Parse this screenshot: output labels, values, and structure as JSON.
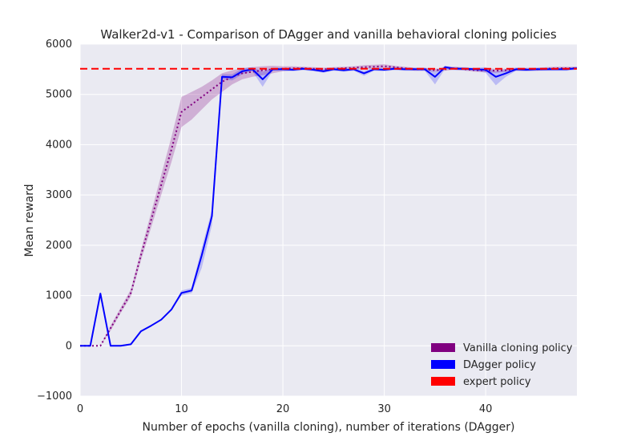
{
  "chart_data": {
    "type": "line",
    "title": "Walker2d-v1 - Comparison of DAgger and vanilla behavioral cloning policies",
    "xlabel": "Number of epochs (vanilla cloning), number of iterations (DAgger)",
    "ylabel": "Mean reward",
    "xlim": [
      0,
      49
    ],
    "ylim": [
      -1000,
      6000
    ],
    "xticks": [
      0,
      10,
      20,
      30,
      40
    ],
    "yticks": [
      -1000,
      0,
      1000,
      2000,
      3000,
      4000,
      5000,
      6000
    ],
    "ytick_labels": [
      "−1000",
      "0",
      "1000",
      "2000",
      "3000",
      "4000",
      "5000",
      "6000"
    ],
    "grid": true,
    "legend_position": "lower-right",
    "colors": {
      "background": "#eaeaf2",
      "grid": "#ffffff",
      "vanilla": "#800080",
      "dagger": "#0000ff",
      "expert": "#ff0000"
    },
    "series": [
      {
        "name": "Vanilla cloning policy",
        "style": "dotted",
        "color": "#800080",
        "x": [
          0,
          1,
          2,
          3,
          4,
          5,
          6,
          7,
          8,
          9,
          10,
          11,
          12,
          13,
          14,
          15,
          16,
          17,
          18,
          19,
          20,
          21,
          22,
          23,
          24,
          25,
          26,
          27,
          28,
          29,
          30,
          31,
          32,
          33,
          34,
          35,
          36,
          37,
          38,
          39,
          40,
          41,
          42,
          43,
          44,
          45,
          46,
          47,
          48,
          49
        ],
        "y": [
          0,
          0,
          0,
          350,
          700,
          1050,
          1800,
          2500,
          3200,
          3900,
          4650,
          4800,
          4950,
          5100,
          5250,
          5350,
          5420,
          5450,
          5480,
          5500,
          5510,
          5520,
          5520,
          5510,
          5500,
          5510,
          5520,
          5530,
          5540,
          5550,
          5560,
          5540,
          5520,
          5500,
          5500,
          5480,
          5500,
          5520,
          5500,
          5480,
          5480,
          5470,
          5480,
          5500,
          5500,
          5500,
          5510,
          5520,
          5520,
          5520
        ],
        "band_low": [
          0,
          0,
          0,
          300,
          650,
          980,
          1700,
          2350,
          3000,
          3650,
          4350,
          4500,
          4700,
          4900,
          5050,
          5200,
          5300,
          5350,
          5380,
          5420,
          5460,
          5480,
          5490,
          5480,
          5470,
          5480,
          5490,
          5500,
          5500,
          5510,
          5520,
          5510,
          5490,
          5470,
          5470,
          5450,
          5470,
          5490,
          5470,
          5450,
          5440,
          5430,
          5450,
          5470,
          5470,
          5470,
          5480,
          5490,
          5490,
          5490
        ],
        "band_high": [
          0,
          0,
          0,
          400,
          760,
          1120,
          1900,
          2650,
          3400,
          4150,
          4950,
          5050,
          5150,
          5280,
          5420,
          5480,
          5520,
          5540,
          5560,
          5570,
          5560,
          5560,
          5550,
          5540,
          5530,
          5540,
          5550,
          5560,
          5580,
          5590,
          5600,
          5570,
          5550,
          5530,
          5530,
          5510,
          5530,
          5550,
          5530,
          5510,
          5520,
          5510,
          5510,
          5530,
          5530,
          5530,
          5540,
          5550,
          5550,
          5550
        ]
      },
      {
        "name": "DAgger policy",
        "style": "solid",
        "color": "#0000ff",
        "x": [
          0,
          1,
          2,
          3,
          4,
          5,
          6,
          7,
          8,
          9,
          10,
          11,
          12,
          13,
          14,
          15,
          16,
          17,
          18,
          19,
          20,
          21,
          22,
          23,
          24,
          25,
          26,
          27,
          28,
          29,
          30,
          31,
          32,
          33,
          34,
          35,
          36,
          37,
          38,
          39,
          40,
          41,
          42,
          43,
          44,
          45,
          46,
          47,
          48,
          49
        ],
        "y": [
          0,
          0,
          1040,
          0,
          0,
          30,
          290,
          400,
          520,
          720,
          1050,
          1100,
          1800,
          2580,
          5350,
          5340,
          5460,
          5500,
          5300,
          5500,
          5500,
          5490,
          5510,
          5490,
          5460,
          5500,
          5480,
          5500,
          5420,
          5500,
          5490,
          5510,
          5500,
          5500,
          5500,
          5350,
          5540,
          5510,
          5510,
          5500,
          5490,
          5350,
          5420,
          5500,
          5490,
          5500,
          5500,
          5500,
          5500,
          5520
        ],
        "band_low": [
          0,
          0,
          1040,
          0,
          0,
          30,
          290,
          400,
          520,
          720,
          1000,
          1050,
          1550,
          2400,
          5300,
          5280,
          5400,
          5460,
          5150,
          5470,
          5470,
          5460,
          5480,
          5460,
          5430,
          5470,
          5450,
          5470,
          5370,
          5470,
          5460,
          5480,
          5470,
          5470,
          5470,
          5200,
          5510,
          5480,
          5480,
          5470,
          5430,
          5180,
          5350,
          5470,
          5460,
          5470,
          5470,
          5470,
          5470,
          5490
        ],
        "band_high": [
          0,
          0,
          1040,
          0,
          0,
          30,
          290,
          400,
          520,
          720,
          1100,
          1150,
          1950,
          2700,
          5400,
          5400,
          5520,
          5540,
          5450,
          5530,
          5530,
          5520,
          5540,
          5520,
          5490,
          5530,
          5510,
          5530,
          5470,
          5530,
          5520,
          5540,
          5530,
          5530,
          5530,
          5450,
          5570,
          5540,
          5540,
          5530,
          5540,
          5450,
          5490,
          5530,
          5520,
          5530,
          5530,
          5530,
          5530,
          5550
        ]
      },
      {
        "name": "expert policy",
        "style": "dashed",
        "color": "#ff0000",
        "constant": 5510
      }
    ]
  }
}
